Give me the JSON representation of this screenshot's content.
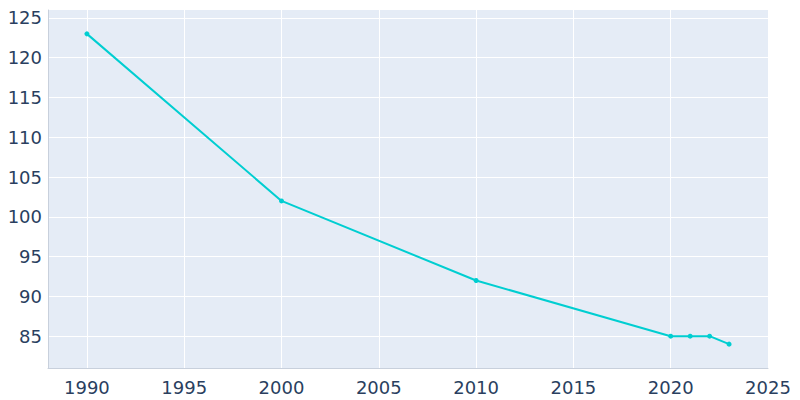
{
  "chart_data": {
    "type": "line",
    "x": [
      1990,
      2000,
      2010,
      2020,
      2021,
      2022,
      2023
    ],
    "values": [
      123,
      102,
      92,
      85,
      85,
      85,
      84
    ],
    "color": "#00ced1",
    "marker": "circle",
    "xlim": [
      1988,
      2025
    ],
    "xticks": [
      1990,
      1995,
      2000,
      2005,
      2010,
      2015,
      2020,
      2025
    ],
    "ylim": [
      81,
      126
    ],
    "yticks": [
      85,
      90,
      95,
      100,
      105,
      110,
      115,
      120,
      125
    ],
    "grid": true
  }
}
